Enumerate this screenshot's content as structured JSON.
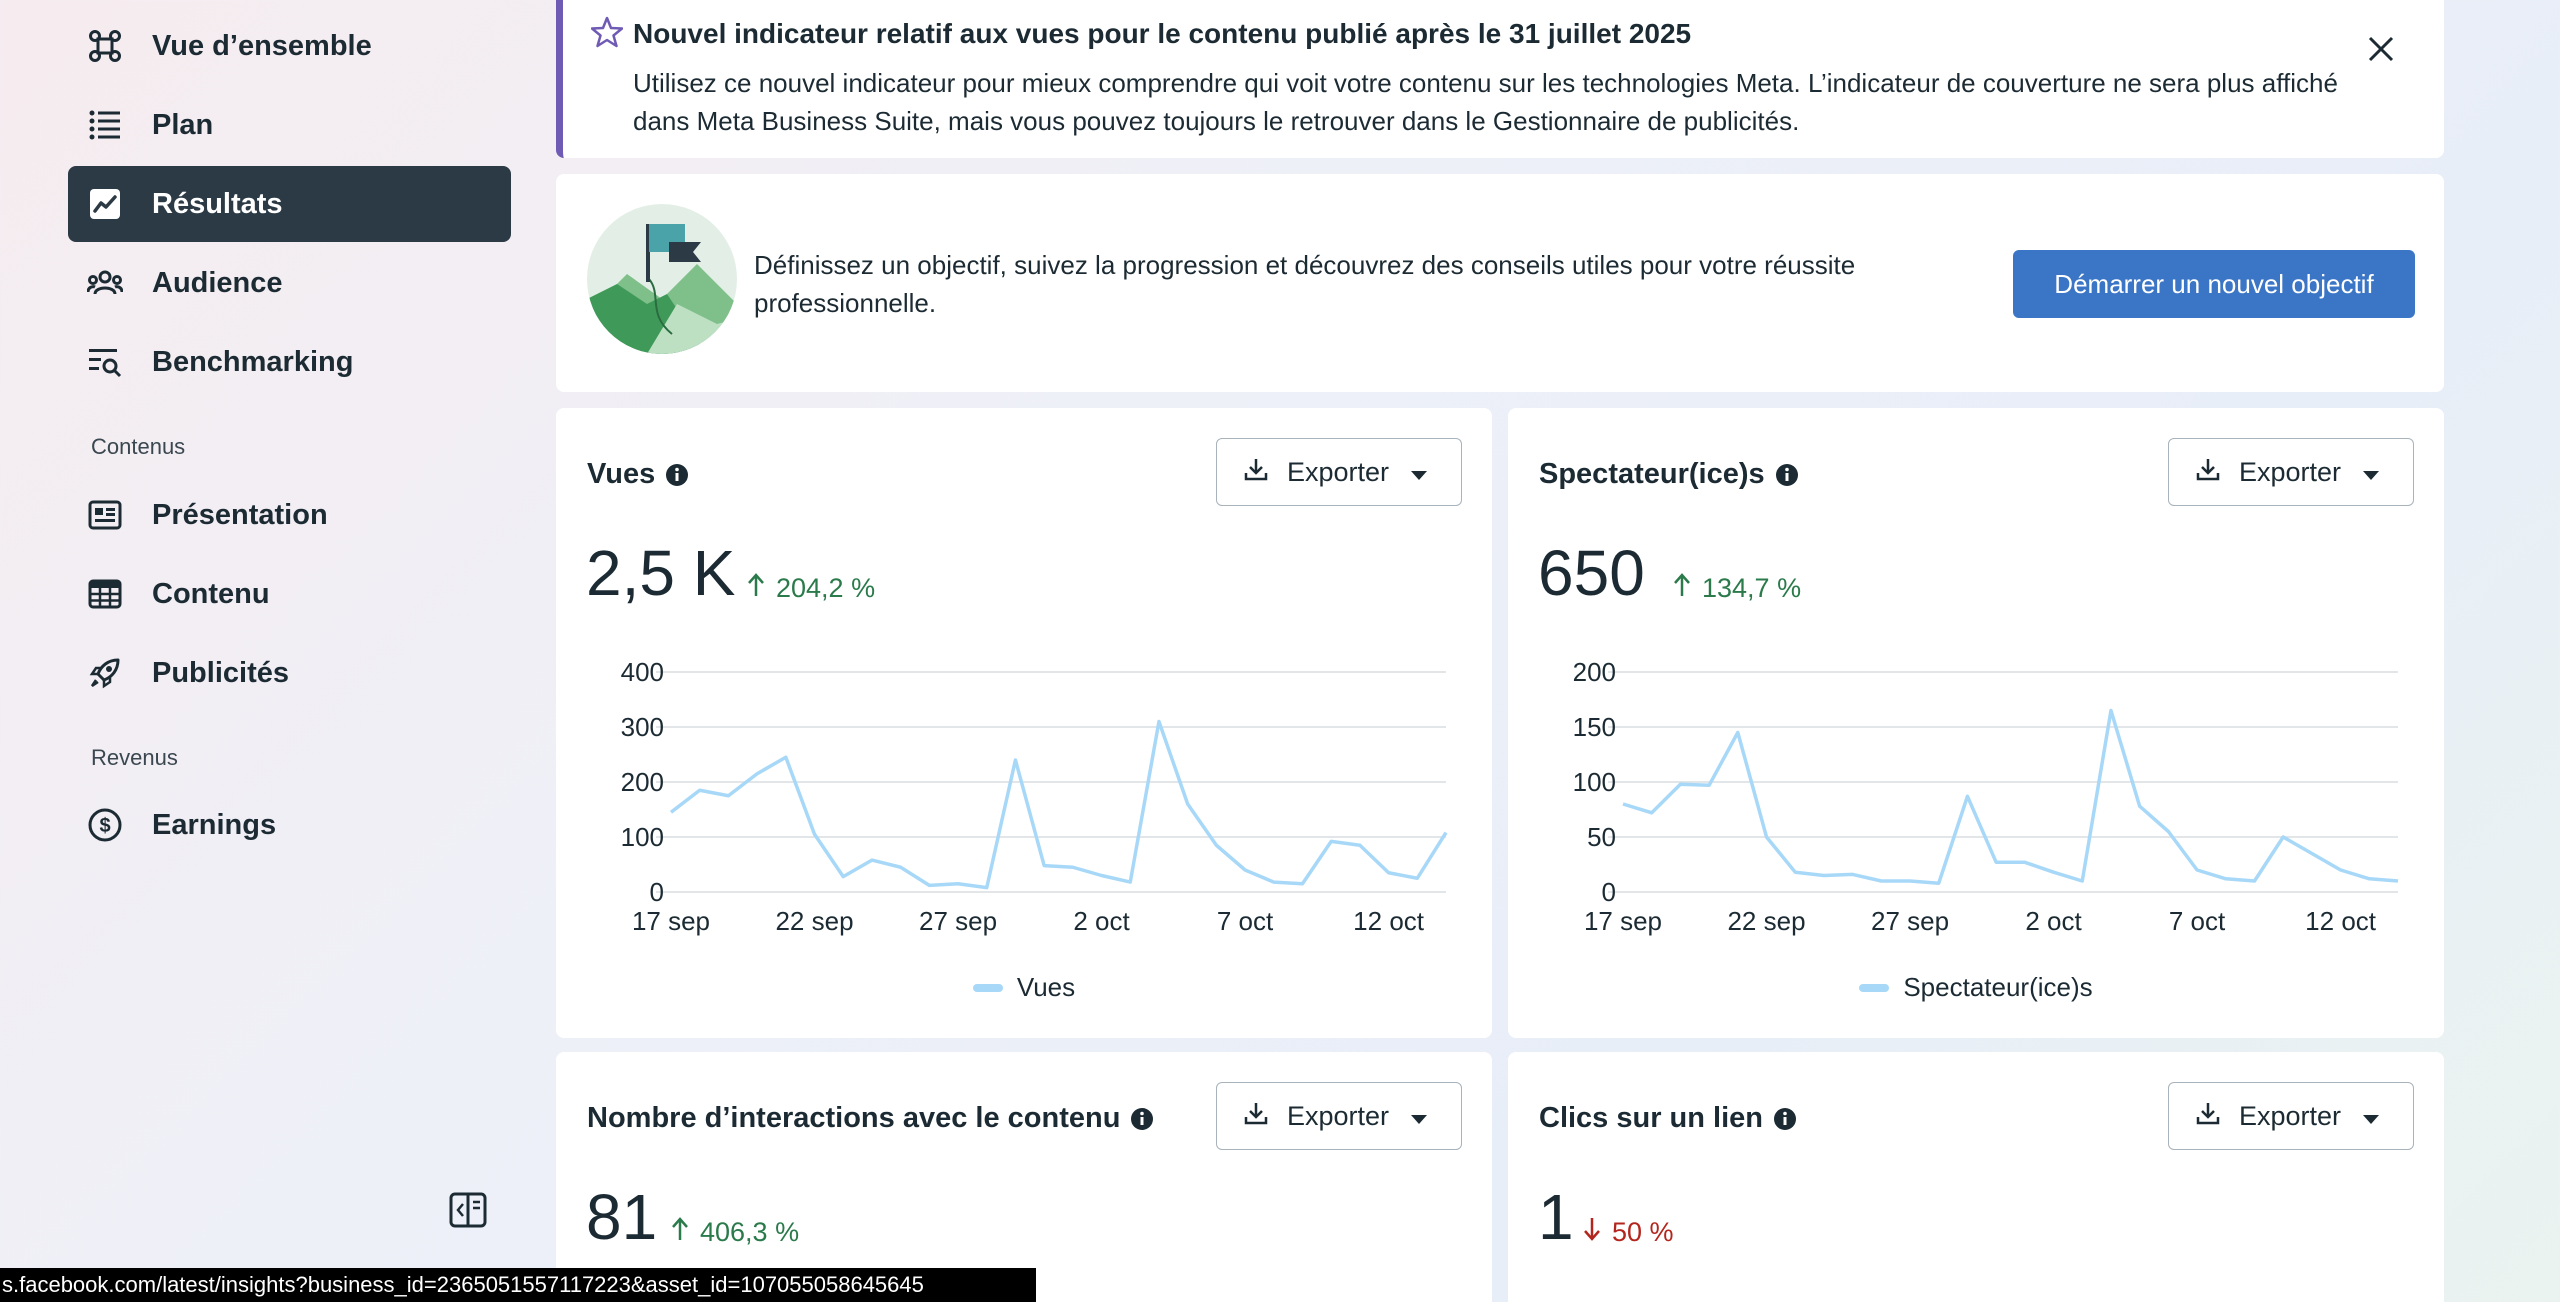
{
  "sidebar": {
    "items": [
      {
        "label": "Vue d’ensemble",
        "icon": "overview-icon"
      },
      {
        "label": "Plan",
        "icon": "list-icon"
      },
      {
        "label": "Résultats",
        "icon": "trend-chart-icon",
        "active": true
      },
      {
        "label": "Audience",
        "icon": "people-icon"
      },
      {
        "label": "Benchmarking",
        "icon": "benchmark-icon"
      }
    ],
    "section_content": "Contenus",
    "content_items": [
      {
        "label": "Présentation",
        "icon": "presentation-icon"
      },
      {
        "label": "Contenu",
        "icon": "table-icon"
      },
      {
        "label": "Publicités",
        "icon": "rocket-icon"
      }
    ],
    "section_revenue": "Revenus",
    "revenue_items": [
      {
        "label": "Earnings",
        "icon": "dollar-circle-icon"
      }
    ]
  },
  "notice": {
    "title": "Nouvel indicateur relatif aux vues pour le contenu publié après le 31 juillet 2025",
    "body": "Utilisez ce nouvel indicateur pour mieux comprendre qui voit votre contenu sur les technologies Meta. L’indicateur de couverture ne sera plus affiché dans Meta Business Suite, mais vous pouvez toujours le retrouver dans le Gestionnaire de publicités."
  },
  "goal": {
    "text": "Définissez un objectif, suivez la progression et découvrez des conseils utiles pour votre réussite professionnelle.",
    "button": "Démarrer un nouvel objectif"
  },
  "export_label": "Exporter",
  "metrics": {
    "views": {
      "title": "Vues",
      "value": "2,5 K",
      "delta": "204,2 %",
      "direction": "up",
      "legend": "Vues"
    },
    "viewers": {
      "title": "Spectateur(ice)s",
      "value": "650",
      "delta": "134,7 %",
      "direction": "up",
      "legend": "Spectateur(ice)s"
    },
    "interactions": {
      "title": "Nombre d’interactions avec le contenu",
      "value": "81",
      "delta": "406,3 %",
      "direction": "up"
    },
    "clicks": {
      "title": "Clics sur un lien",
      "value": "1",
      "delta": "50 %",
      "direction": "down"
    }
  },
  "colors": {
    "line": "#a8d8f8",
    "up": "#2b7a4b",
    "down": "#b3261e",
    "active_nav": "#2b3a45",
    "primary_button": "#3b76c6",
    "notice_accent": "#6f5bb4"
  },
  "chart_data": [
    {
      "type": "line",
      "x": [
        "17 sep",
        "18 sep",
        "19 sep",
        "20 sep",
        "21 sep",
        "22 sep",
        "23 sep",
        "24 sep",
        "25 sep",
        "26 sep",
        "27 sep",
        "28 sep",
        "29 sep",
        "30 sep",
        "1 oct",
        "2 oct",
        "3 oct",
        "4 oct",
        "5 oct",
        "6 oct",
        "7 oct",
        "8 oct",
        "9 oct",
        "10 oct",
        "11 oct",
        "12 oct",
        "13 oct",
        "14 oct"
      ],
      "x_tick_labels": [
        "17 sep",
        "22 sep",
        "27 sep",
        "2 oct",
        "7 oct",
        "12 oct"
      ],
      "series": [
        {
          "name": "Vues",
          "values": [
            145,
            185,
            175,
            215,
            245,
            105,
            28,
            58,
            45,
            12,
            15,
            8,
            240,
            48,
            45,
            30,
            18,
            310,
            160,
            85,
            40,
            18,
            15,
            92,
            85,
            35,
            25,
            108
          ]
        }
      ],
      "y_ticks": [
        0,
        100,
        200,
        300,
        400
      ],
      "ylim": [
        0,
        400
      ]
    },
    {
      "type": "line",
      "x": [
        "17 sep",
        "18 sep",
        "19 sep",
        "20 sep",
        "21 sep",
        "22 sep",
        "23 sep",
        "24 sep",
        "25 sep",
        "26 sep",
        "27 sep",
        "28 sep",
        "29 sep",
        "30 sep",
        "1 oct",
        "2 oct",
        "3 oct",
        "4 oct",
        "5 oct",
        "6 oct",
        "7 oct",
        "8 oct",
        "9 oct",
        "10 oct",
        "11 oct",
        "12 oct",
        "13 oct",
        "14 oct"
      ],
      "x_tick_labels": [
        "17 sep",
        "22 sep",
        "27 sep",
        "2 oct",
        "7 oct",
        "12 oct"
      ],
      "series": [
        {
          "name": "Spectateur(ice)s",
          "values": [
            80,
            72,
            98,
            97,
            145,
            50,
            18,
            15,
            16,
            10,
            10,
            8,
            87,
            27,
            27,
            18,
            10,
            165,
            78,
            55,
            20,
            12,
            10,
            50,
            35,
            20,
            12,
            10
          ]
        }
      ],
      "y_ticks": [
        0,
        50,
        100,
        150,
        200
      ],
      "ylim": [
        0,
        200
      ]
    }
  ],
  "status_url": "s.facebook.com/latest/insights?business_id=2365051557117223&asset_id=107055058645645"
}
